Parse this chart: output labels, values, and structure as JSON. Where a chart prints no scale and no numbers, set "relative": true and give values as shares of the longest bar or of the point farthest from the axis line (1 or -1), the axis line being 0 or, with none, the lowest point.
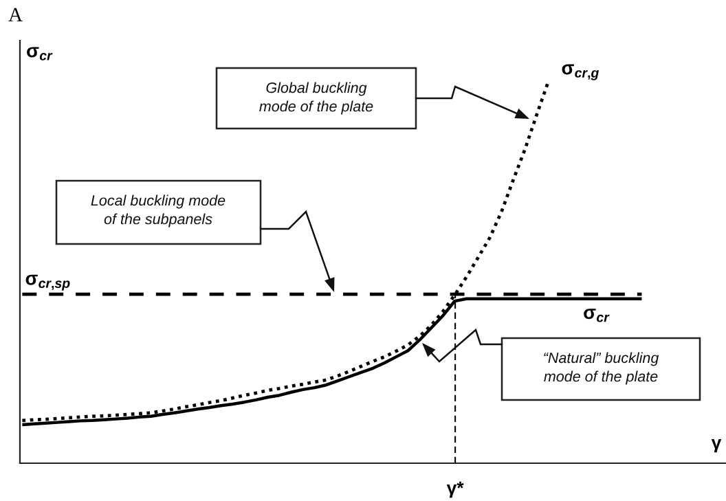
{
  "chart_data": {
    "type": "line",
    "title": "A",
    "ylabel": "σ$_{cr}$",
    "xlabel": "γ",
    "relative": true,
    "categories": [
      null,
      null,
      null,
      null,
      null,
      null,
      null,
      null,
      null,
      null,
      null,
      null,
      null,
      null,
      null,
      null,
      null,
      null,
      null,
      null,
      null,
      null,
      null,
      null,
      null,
      null,
      null,
      null,
      null,
      null,
      null,
      null,
      null,
      null,
      null,
      null,
      null,
      null,
      null,
      null,
      null,
      null,
      null,
      null,
      null,
      null,
      null,
      null,
      null,
      null,
      null,
      null,
      null,
      null
    ],
    "series": [
      {
        "name": "σ$_{cr,g}$",
        "color": "#000000",
        "line_style": "dotted",
        "values": [
          0.112,
          0.114,
          0.115,
          0.117,
          0.119,
          0.121,
          0.123,
          0.124,
          0.126,
          0.128,
          0.13,
          0.132,
          0.137,
          0.142,
          0.148,
          0.153,
          0.159,
          0.164,
          0.171,
          0.178,
          0.184,
          0.191,
          0.196,
          0.202,
          0.207,
          0.213,
          0.218,
          0.229,
          0.241,
          0.254,
          0.267,
          0.279,
          0.294,
          0.31,
          0.333,
          0.362,
          0.398,
          0.441,
          0.488,
          0.539,
          0.591,
          0.659,
          0.742,
          0.822,
          0.912,
          1.0,
          null,
          null,
          null,
          null,
          null,
          null,
          null,
          null
        ]
      },
      {
        "name": "σ$_{cr}$",
        "color": "#000000",
        "line_style": "solid",
        "values": [
          0.101,
          0.103,
          0.105,
          0.107,
          0.109,
          0.111,
          0.112,
          0.114,
          0.116,
          0.118,
          0.121,
          0.123,
          0.128,
          0.132,
          0.137,
          0.142,
          0.146,
          0.151,
          0.155,
          0.16,
          0.166,
          0.173,
          0.178,
          0.186,
          0.193,
          0.198,
          0.205,
          0.216,
          0.227,
          0.238,
          0.249,
          0.263,
          0.279,
          0.295,
          0.323,
          0.355,
          0.387,
          0.425,
          0.431,
          0.431,
          0.431,
          0.431,
          0.431,
          0.431,
          0.431,
          0.431,
          0.431,
          0.431,
          0.431,
          0.431,
          0.431,
          0.431,
          0.431,
          0.431
        ]
      },
      {
        "name": "σ$_{cr,sp}$",
        "color": "#000000",
        "line_style": "dashed",
        "values": [
          0.443,
          0.443,
          0.443,
          0.443,
          0.443,
          0.443,
          0.443,
          0.443,
          0.443,
          0.443,
          0.443,
          0.443,
          0.443,
          0.443,
          0.443,
          0.443,
          0.443,
          0.443,
          0.443,
          0.443,
          0.443,
          0.443,
          0.443,
          0.443,
          0.443,
          0.443,
          0.443,
          0.443,
          0.443,
          0.443,
          0.443,
          0.443,
          0.443,
          0.443,
          0.443,
          0.443,
          0.443,
          0.443,
          0.443,
          0.443,
          0.443,
          0.443,
          0.443,
          0.443,
          0.443,
          0.443,
          0.443,
          0.443,
          0.443,
          0.443,
          0.443,
          0.443,
          0.443,
          0.443
        ]
      }
    ],
    "annotations": [
      "Global buckling\nmode of the plate",
      "Local buckling mode\nof the subpanels",
      "“Natural” buckling\nmode of the plate",
      "γ*"
    ]
  }
}
